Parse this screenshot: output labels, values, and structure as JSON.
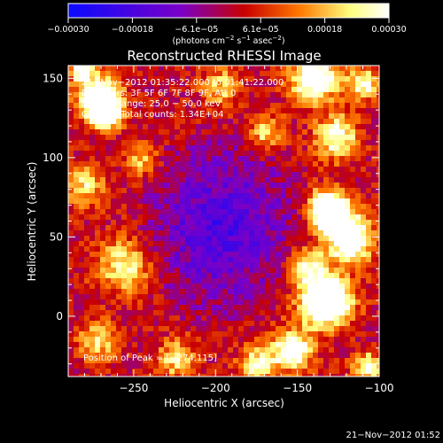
{
  "chart_data": {
    "type": "heatmap",
    "title": "Reconstructed RHESSI Image",
    "xlabel": "Heliocentric X (arcsec)",
    "ylabel": "Heliocentric Y (arcsec)",
    "xlim": [
      -290,
      -100
    ],
    "ylim": [
      -38,
      158
    ],
    "x_ticks": [
      -250,
      -200,
      -150,
      -100
    ],
    "x_tick_labels": [
      "−250",
      "−200",
      "−150",
      "−100"
    ],
    "y_ticks": [
      0,
      50,
      100,
      150
    ],
    "y_tick_labels": [
      "0",
      "50",
      "100",
      "150"
    ],
    "colorbar": {
      "range": [
        -0.0003,
        0.0003
      ],
      "colors": [
        "#0a0aff",
        "#7a00c8",
        "#c80000",
        "#ff7800",
        "#ffff80",
        "#ffffff"
      ],
      "tick_labels": [
        "−0.00030",
        "−0.00018",
        "−6.1e−05",
        "6.1e−05",
        "0.00018",
        "0.00030"
      ],
      "units_prefix": "(photons cm",
      "units_sup1": "−2",
      "units_mid": " s",
      "units_sup2": "−1",
      "units_mid2": " asec",
      "units_sup3": "−2",
      "units_suffix": ")"
    },
    "annotations": [
      "21−Nov−2012 01:35:22.000 to 01:41:22.000",
      "Detectors: 3F 5F 6F 7F 8F 9F, Att 0",
      "Energy Range: 25.0 − 50.0 keV",
      "Clean     Total counts: 1.34E+04"
    ],
    "peak_label": "Position of Peak = [−274,115]",
    "grid": false
  },
  "footer_timestamp": "21−Nov−2012 01:52"
}
